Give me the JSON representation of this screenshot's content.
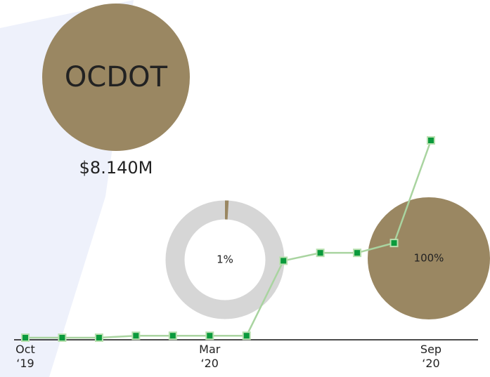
{
  "title": "OCDOT",
  "amount": "$8.140M",
  "chart_data": [
    {
      "type": "line",
      "categories": [
        "Oct ‘19",
        null,
        null,
        null,
        null,
        "Mar ‘20",
        null,
        null,
        null,
        null,
        null,
        "Sep ‘20"
      ],
      "values": [
        0,
        0,
        0,
        1,
        1,
        1,
        1,
        39,
        43,
        43,
        48,
        100
      ],
      "color": "#a9d4a0",
      "marker_color": "#0b9a3c",
      "ylim": [
        0,
        100
      ]
    },
    {
      "type": "donut",
      "values": [
        1
      ],
      "value_labels": [
        "1%"
      ],
      "color": "#9a8762",
      "track_color": "#d6d6d6"
    },
    {
      "type": "pie",
      "values": [
        100
      ],
      "value_labels": [
        "100%"
      ],
      "color": "#9a8762"
    }
  ]
}
